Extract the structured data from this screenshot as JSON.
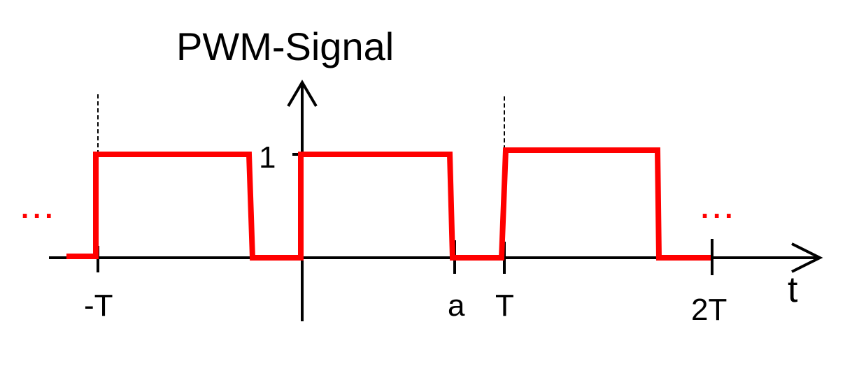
{
  "title": "PWM-Signal",
  "axis": {
    "x_name": "t",
    "y_tick_label": "1",
    "x_tick_labels": [
      "-T",
      "a",
      "T",
      "2T"
    ]
  },
  "continuation": "...",
  "colors": {
    "signal": "#ff0000",
    "axis": "#000000",
    "background": "#ffffff"
  }
}
